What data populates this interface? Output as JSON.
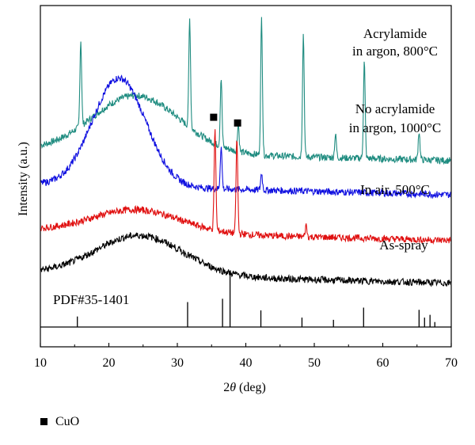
{
  "chart_data": {
    "type": "line",
    "xlabel_prefix": "2",
    "xlabel_symbol": "θ",
    "xlabel_suffix": " (deg)",
    "ylabel": "Intensity (a.u.)",
    "xlim": [
      10,
      70
    ],
    "x_ticks": [
      "10",
      "20",
      "30",
      "40",
      "50",
      "60",
      "70"
    ],
    "grid": false,
    "series": [
      {
        "name": "Acrylamide in argon, 800°C",
        "label_lines": [
          "Acrylamide",
          "in argon, 800°C"
        ],
        "color": "#1f8c80",
        "baseline_y": 62,
        "hump": {
          "center": 24,
          "width": 9,
          "height": 20
        },
        "peaks": [
          {
            "x": 15.9,
            "height": 30
          },
          {
            "x": 31.8,
            "height": 38
          },
          {
            "x": 36.4,
            "height": 24
          },
          {
            "x": 38.9,
            "height": 10
          },
          {
            "x": 42.3,
            "height": 48
          },
          {
            "x": 48.4,
            "height": 43
          },
          {
            "x": 53.1,
            "height": 8
          },
          {
            "x": 57.3,
            "height": 34
          },
          {
            "x": 65.3,
            "height": 10
          }
        ]
      },
      {
        "name": "No acrylamide in argon, 1000°C",
        "label_lines": [
          "No acrylamide",
          "in argon, 1000°C"
        ],
        "color": "#1010e0",
        "baseline_y": 50,
        "hump": {
          "center": 21.5,
          "width": 5.5,
          "height": 38
        },
        "peaks": [
          {
            "x": 36.4,
            "height": 15
          },
          {
            "x": 42.3,
            "height": 6
          }
        ]
      },
      {
        "name": "In air, 500°C",
        "label_lines": [
          "In air, 500°C"
        ],
        "color": "#e01010",
        "baseline_y": 34,
        "hump": {
          "center": 24,
          "width": 9,
          "height": 8
        },
        "peaks": [
          {
            "x": 35.5,
            "height": 35
          },
          {
            "x": 38.7,
            "height": 33
          },
          {
            "x": 48.8,
            "height": 4
          }
        ]
      },
      {
        "name": "As-spray",
        "label_lines": [
          "As-spray"
        ],
        "color": "#000000",
        "baseline_y": 19,
        "hump": {
          "center": 24.5,
          "width": 9,
          "height": 14
        },
        "peaks": []
      }
    ],
    "reference": {
      "label": "PDF#35-1401",
      "lines": [
        {
          "x": 15.4,
          "intensity": 0.19
        },
        {
          "x": 31.5,
          "intensity": 0.45
        },
        {
          "x": 36.6,
          "intensity": 0.51
        },
        {
          "x": 37.7,
          "intensity": 1.0
        },
        {
          "x": 42.2,
          "intensity": 0.3
        },
        {
          "x": 48.2,
          "intensity": 0.17
        },
        {
          "x": 52.8,
          "intensity": 0.13
        },
        {
          "x": 57.2,
          "intensity": 0.35
        },
        {
          "x": 65.3,
          "intensity": 0.31
        },
        {
          "x": 66.1,
          "intensity": 0.17
        },
        {
          "x": 66.9,
          "intensity": 0.22
        },
        {
          "x": 67.6,
          "intensity": 0.09
        }
      ]
    },
    "markers": [
      {
        "x": 35.3,
        "series": "In air, 500°C",
        "symbol": "filled-square",
        "meaning": "CuO"
      },
      {
        "x": 38.8,
        "series": "In air, 500°C",
        "symbol": "filled-square",
        "meaning": "CuO"
      }
    ],
    "legend": {
      "symbol": "filled-square",
      "label": "CuO",
      "position": "bottom-left"
    }
  }
}
